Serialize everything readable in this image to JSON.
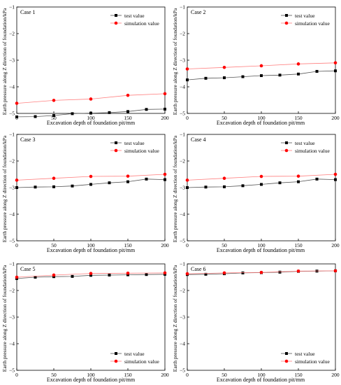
{
  "figure": {
    "ylabel": "Earth pressure along Z direction of foundation/kPa",
    "xlabel": "Excavation depth of foundation pit/mm",
    "legend": {
      "test": "test value",
      "simulation": "simulation value"
    },
    "colors": {
      "axis": "#000000",
      "test": "#000000",
      "test_line": "#555555",
      "simulation": "#ff0000",
      "simulation_line": "#ff8080"
    }
  },
  "chart_data": [
    {
      "type": "line",
      "title": "Case 1",
      "xlabel": "Excavation depth of foundation pit/mm",
      "ylabel": "Earth pressure along Z direction of foundation/kPa",
      "xlim": [
        0,
        200
      ],
      "ylim": [
        -5,
        -1
      ],
      "xticks": [
        0,
        50,
        100,
        150,
        200
      ],
      "yticks": [
        -5,
        -4,
        -3,
        -2,
        -1
      ],
      "legend_position": "top-right",
      "grid": false,
      "series": [
        {
          "name": "test value",
          "x": [
            0,
            25,
            50,
            75,
            100,
            125,
            150,
            175,
            200
          ],
          "y": [
            -5.13,
            -5.12,
            -5.08,
            -5.01,
            -4.99,
            -4.97,
            -4.93,
            -4.85,
            -4.84
          ]
        },
        {
          "name": "simulation value",
          "x": [
            0,
            50,
            100,
            150,
            200
          ],
          "y": [
            -4.62,
            -4.51,
            -4.46,
            -4.32,
            -4.26
          ]
        }
      ]
    },
    {
      "type": "line",
      "title": "Case 2",
      "xlabel": "Excavation depth of foundation pit/mm",
      "ylabel": "Earth pressure along Z direction of foundation/kPa",
      "xlim": [
        0,
        200
      ],
      "ylim": [
        -5,
        -1
      ],
      "xticks": [
        0,
        50,
        100,
        150,
        200
      ],
      "yticks": [
        -5,
        -4,
        -3,
        -2,
        -1
      ],
      "legend_position": "top-right",
      "grid": false,
      "series": [
        {
          "name": "test value",
          "x": [
            0,
            25,
            50,
            75,
            100,
            125,
            150,
            175,
            200
          ],
          "y": [
            -3.74,
            -3.68,
            -3.66,
            -3.62,
            -3.58,
            -3.56,
            -3.52,
            -3.42,
            -3.4
          ]
        },
        {
          "name": "simulation value",
          "x": [
            0,
            50,
            100,
            150,
            200
          ],
          "y": [
            -3.33,
            -3.27,
            -3.21,
            -3.14,
            -3.1
          ]
        }
      ]
    },
    {
      "type": "line",
      "title": "Case 3",
      "xlabel": "Excavation depth of foundation pit/mm",
      "ylabel": "Earth pressure along Z direction of foundation/kPa",
      "xlim": [
        0,
        200
      ],
      "ylim": [
        -5,
        -1
      ],
      "xticks": [
        0,
        50,
        100,
        150,
        200
      ],
      "yticks": [
        -5,
        -4,
        -3,
        -2,
        -1
      ],
      "legend_position": "top-right",
      "grid": false,
      "series": [
        {
          "name": "test value",
          "x": [
            0,
            25,
            50,
            75,
            100,
            125,
            150,
            175,
            200
          ],
          "y": [
            -3.0,
            -2.98,
            -2.97,
            -2.94,
            -2.88,
            -2.82,
            -2.78,
            -2.68,
            -2.7
          ]
        },
        {
          "name": "simulation value",
          "x": [
            0,
            50,
            100,
            150,
            200
          ],
          "y": [
            -2.72,
            -2.65,
            -2.58,
            -2.57,
            -2.5
          ]
        }
      ]
    },
    {
      "type": "line",
      "title": "Case 4",
      "xlabel": "Excavation depth of foundation pit/mm",
      "ylabel": "Earth pressure along Z direction of foundation/kPa",
      "xlim": [
        0,
        200
      ],
      "ylim": [
        -5,
        -1
      ],
      "xticks": [
        0,
        50,
        100,
        150,
        200
      ],
      "yticks": [
        -5,
        -4,
        -3,
        -2,
        -1
      ],
      "legend_position": "top-right",
      "grid": false,
      "series": [
        {
          "name": "test value",
          "x": [
            0,
            25,
            50,
            75,
            100,
            125,
            150,
            175,
            200
          ],
          "y": [
            -3.0,
            -2.98,
            -2.97,
            -2.93,
            -2.88,
            -2.82,
            -2.78,
            -2.68,
            -2.7
          ]
        },
        {
          "name": "simulation value",
          "x": [
            0,
            50,
            100,
            150,
            200
          ],
          "y": [
            -2.72,
            -2.65,
            -2.58,
            -2.57,
            -2.5
          ]
        }
      ]
    },
    {
      "type": "line",
      "title": "Case 5",
      "xlabel": "Excavation depth of foundation pit/mm",
      "ylabel": "Earth pressure along Z direction of foundation/kPa",
      "xlim": [
        0,
        200
      ],
      "ylim": [
        -5,
        -1
      ],
      "xticks": [
        0,
        50,
        100,
        150,
        200
      ],
      "yticks": [
        -5,
        -4,
        -3,
        -2,
        -1
      ],
      "legend_position": "bottom-right",
      "grid": false,
      "series": [
        {
          "name": "test value",
          "x": [
            0,
            25,
            50,
            75,
            100,
            125,
            150,
            175,
            200
          ],
          "y": [
            -1.55,
            -1.5,
            -1.48,
            -1.47,
            -1.43,
            -1.42,
            -1.41,
            -1.4,
            -1.39
          ]
        },
        {
          "name": "simulation value",
          "x": [
            0,
            50,
            100,
            150,
            200
          ],
          "y": [
            -1.5,
            -1.42,
            -1.36,
            -1.35,
            -1.34
          ]
        }
      ]
    },
    {
      "type": "line",
      "title": "Case 6",
      "xlabel": "Excavation depth of foundation pit/mm",
      "ylabel": "Earth pressure along Z direction of foundation/kPa",
      "xlim": [
        0,
        200
      ],
      "ylim": [
        -5,
        -1
      ],
      "xticks": [
        0,
        50,
        100,
        150,
        200
      ],
      "yticks": [
        -5,
        -4,
        -3,
        -2,
        -1
      ],
      "legend_position": "bottom-right",
      "grid": false,
      "series": [
        {
          "name": "test value",
          "x": [
            0,
            25,
            50,
            75,
            100,
            125,
            150,
            175,
            200
          ],
          "y": [
            -1.4,
            -1.39,
            -1.37,
            -1.34,
            -1.33,
            -1.31,
            -1.28,
            -1.27,
            -1.26
          ]
        },
        {
          "name": "simulation value",
          "x": [
            0,
            50,
            100,
            150,
            200
          ],
          "y": [
            -1.37,
            -1.34,
            -1.32,
            -1.27,
            -1.26
          ]
        }
      ]
    }
  ]
}
